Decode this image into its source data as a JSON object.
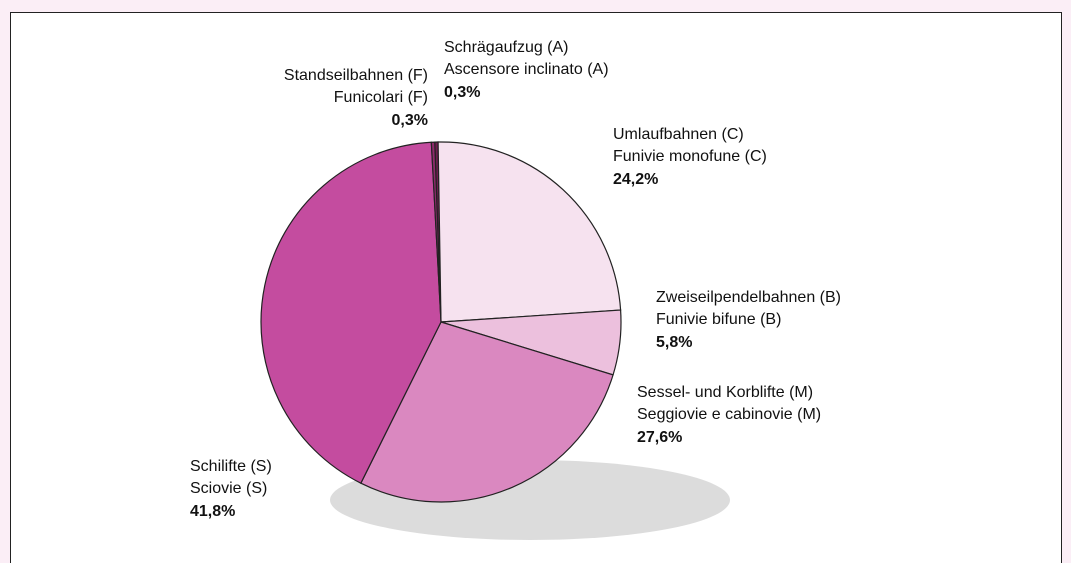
{
  "chart_data": {
    "type": "pie",
    "categories": [
      "Schrägaufzug (A)",
      "Umlaufbahnen (C)",
      "Zweiseilpendelbahnen (B)",
      "Sessel- und Korblifte (M)",
      "Schilifte (S)",
      "Standseilbahnen (F)"
    ],
    "categories_it": [
      "Ascensore inclinato (A)",
      "Funivie monofune (C)",
      "Funivie bifune (B)",
      "Seggiovie e cabinovie (M)",
      "Sciovie (S)",
      "Funicolari (F)"
    ],
    "values": [
      0.3,
      24.2,
      5.8,
      27.6,
      41.8,
      0.3
    ],
    "value_labels": [
      "0,3%",
      "24,2%",
      "5,8%",
      "27,6%",
      "41,8%",
      "0,3%"
    ],
    "colors": [
      "#6e1c4f",
      "#f6e2ef",
      "#ecc0dd",
      "#da88c0",
      "#c44c9f",
      "#8e2b6c"
    ]
  }
}
